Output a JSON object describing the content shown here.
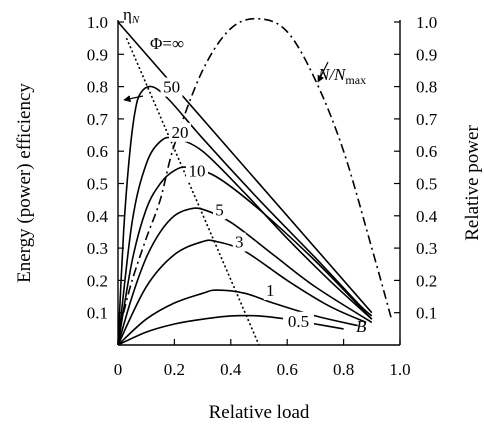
{
  "chart_data": {
    "type": "line",
    "xlabel": "Relative load",
    "ylabel_left": "Energy (power) efficiency",
    "ylabel_right": "Relative power",
    "xlim": [
      0,
      1.0
    ],
    "ylim": [
      0,
      1.0
    ],
    "x_ticks": [
      "0",
      "0.2",
      "0.4",
      "0.6",
      "0.8",
      "1.0"
    ],
    "y_ticks": [
      "0.1",
      "0.2",
      "0.3",
      "0.4",
      "0.5",
      "0.6",
      "0.7",
      "0.8",
      "0.9",
      "1.0"
    ],
    "labels": {
      "eta_main": "η",
      "eta_sub": "N",
      "phi_inf": "Φ=∞",
      "npow_main": "N/N",
      "npow_sub": "max",
      "point_b": "B"
    },
    "series": [
      {
        "name": "Φ=∞",
        "style": "solid",
        "x": [
          0,
          0.9
        ],
        "y": [
          1.0,
          0.1
        ]
      },
      {
        "name": "50",
        "style": "solid",
        "x": [
          0,
          0.02,
          0.04,
          0.06,
          0.08,
          0.12,
          0.18,
          0.3,
          0.5,
          0.7,
          0.85,
          0.9
        ],
        "y": [
          0,
          0.35,
          0.58,
          0.72,
          0.78,
          0.8,
          0.76,
          0.64,
          0.45,
          0.27,
          0.13,
          0.09
        ]
      },
      {
        "name": "20",
        "style": "solid",
        "x": [
          0,
          0.05,
          0.1,
          0.15,
          0.2,
          0.3,
          0.45,
          0.6,
          0.75,
          0.9
        ],
        "y": [
          0,
          0.38,
          0.56,
          0.63,
          0.64,
          0.6,
          0.47,
          0.33,
          0.2,
          0.08
        ]
      },
      {
        "name": "10",
        "style": "solid",
        "x": [
          0,
          0.05,
          0.1,
          0.15,
          0.2,
          0.25,
          0.35,
          0.5,
          0.7,
          0.9
        ],
        "y": [
          0,
          0.26,
          0.42,
          0.5,
          0.54,
          0.55,
          0.52,
          0.42,
          0.26,
          0.08
        ]
      },
      {
        "name": "5",
        "style": "solid",
        "x": [
          0,
          0.05,
          0.1,
          0.15,
          0.2,
          0.25,
          0.3,
          0.4,
          0.55,
          0.7,
          0.9
        ],
        "y": [
          0,
          0.15,
          0.27,
          0.35,
          0.4,
          0.42,
          0.42,
          0.38,
          0.28,
          0.18,
          0.07
        ]
      },
      {
        "name": "3",
        "style": "solid",
        "x": [
          0,
          0.1,
          0.2,
          0.3,
          0.35,
          0.45,
          0.6,
          0.75,
          0.88
        ],
        "y": [
          0,
          0.18,
          0.28,
          0.32,
          0.32,
          0.29,
          0.2,
          0.12,
          0.07
        ]
      },
      {
        "name": "1",
        "style": "solid",
        "x": [
          0,
          0.1,
          0.2,
          0.3,
          0.35,
          0.45,
          0.55,
          0.7,
          0.85
        ],
        "y": [
          0,
          0.08,
          0.13,
          0.16,
          0.17,
          0.16,
          0.13,
          0.09,
          0.06
        ]
      },
      {
        "name": "0.5",
        "style": "solid",
        "x": [
          0,
          0.1,
          0.2,
          0.3,
          0.4,
          0.5,
          0.6,
          0.7,
          0.8
        ],
        "y": [
          0,
          0.04,
          0.065,
          0.08,
          0.09,
          0.09,
          0.08,
          0.065,
          0.05
        ]
      },
      {
        "name": "η_N",
        "style": "dotted",
        "x": [
          0.03,
          0.5
        ],
        "y": [
          0.95,
          0.0
        ]
      },
      {
        "name": "N/N_max",
        "style": "dash-dot",
        "x": [
          0.02,
          0.05,
          0.1,
          0.15,
          0.2,
          0.3,
          0.4,
          0.5,
          0.6,
          0.7,
          0.8,
          0.9,
          0.97
        ],
        "y": [
          0.1,
          0.2,
          0.33,
          0.45,
          0.62,
          0.85,
          0.98,
          1.01,
          0.97,
          0.82,
          0.6,
          0.3,
          0.08
        ]
      }
    ],
    "curve_labels": [
      {
        "text": "50",
        "x": 0.19,
        "y": 0.8
      },
      {
        "text": "20",
        "x": 0.22,
        "y": 0.66
      },
      {
        "text": "10",
        "x": 0.28,
        "y": 0.54
      },
      {
        "text": "5",
        "x": 0.36,
        "y": 0.42
      },
      {
        "text": "3",
        "x": 0.43,
        "y": 0.32
      },
      {
        "text": "1",
        "x": 0.54,
        "y": 0.17
      },
      {
        "text": "0.5",
        "x": 0.64,
        "y": 0.075
      }
    ],
    "grid": false
  }
}
